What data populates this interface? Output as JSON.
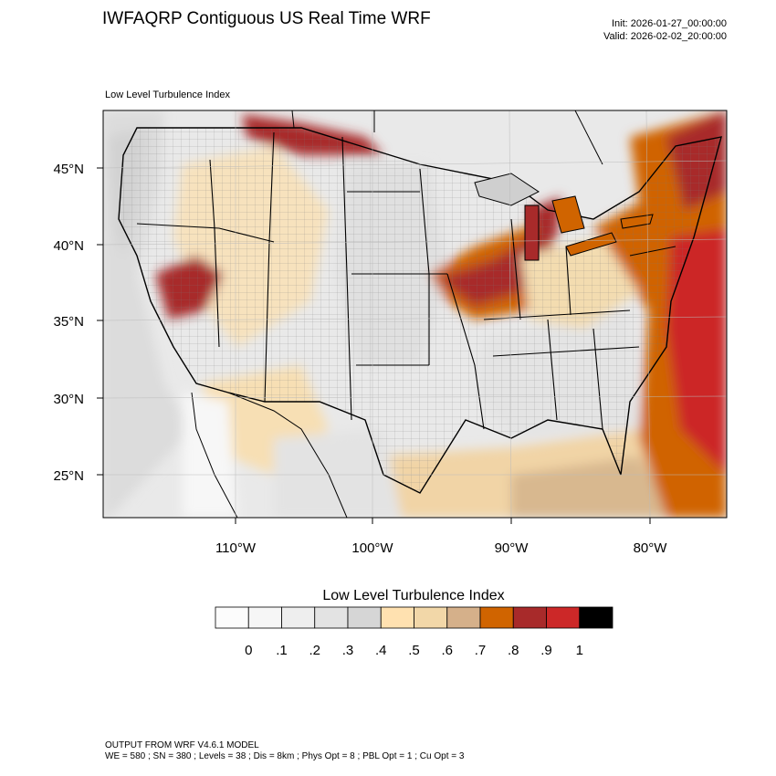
{
  "header": {
    "title": "IWFAQRP Contiguous US Real Time WRF",
    "init": "Init: 2026-01-27_00:00:00",
    "valid": "Valid: 2026-02-02_20:00:00"
  },
  "map": {
    "field_label": "Low Level Turbulence Index",
    "lat_labels": [
      "45°N",
      "40°N",
      "35°N",
      "30°N",
      "25°N"
    ],
    "lon_labels": [
      "110°W",
      "100°W",
      "90°W",
      "80°W"
    ]
  },
  "colorbar": {
    "title": "Low Level Turbulence Index",
    "colors": [
      "#fcfcfc",
      "#f6f6f6",
      "#eeeeee",
      "#e3e3e3",
      "#d6d6d6",
      "#ffe1b0",
      "#f2d7a8",
      "#d5b08a",
      "#d06400",
      "#a82a2a",
      "#cc2828",
      "#000000"
    ],
    "labels": [
      "0",
      ".1",
      ".2",
      ".3",
      ".4",
      ".5",
      ".6",
      ".7",
      ".8",
      ".9",
      "1"
    ]
  },
  "footer": {
    "line1": "OUTPUT FROM WRF V4.6.1 MODEL",
    "line2": "WE = 580 ; SN = 380 ; Levels = 38 ; Dis = 8km ; Phys Opt = 8 ; PBL Opt = 1 ; Cu Opt = 3"
  }
}
